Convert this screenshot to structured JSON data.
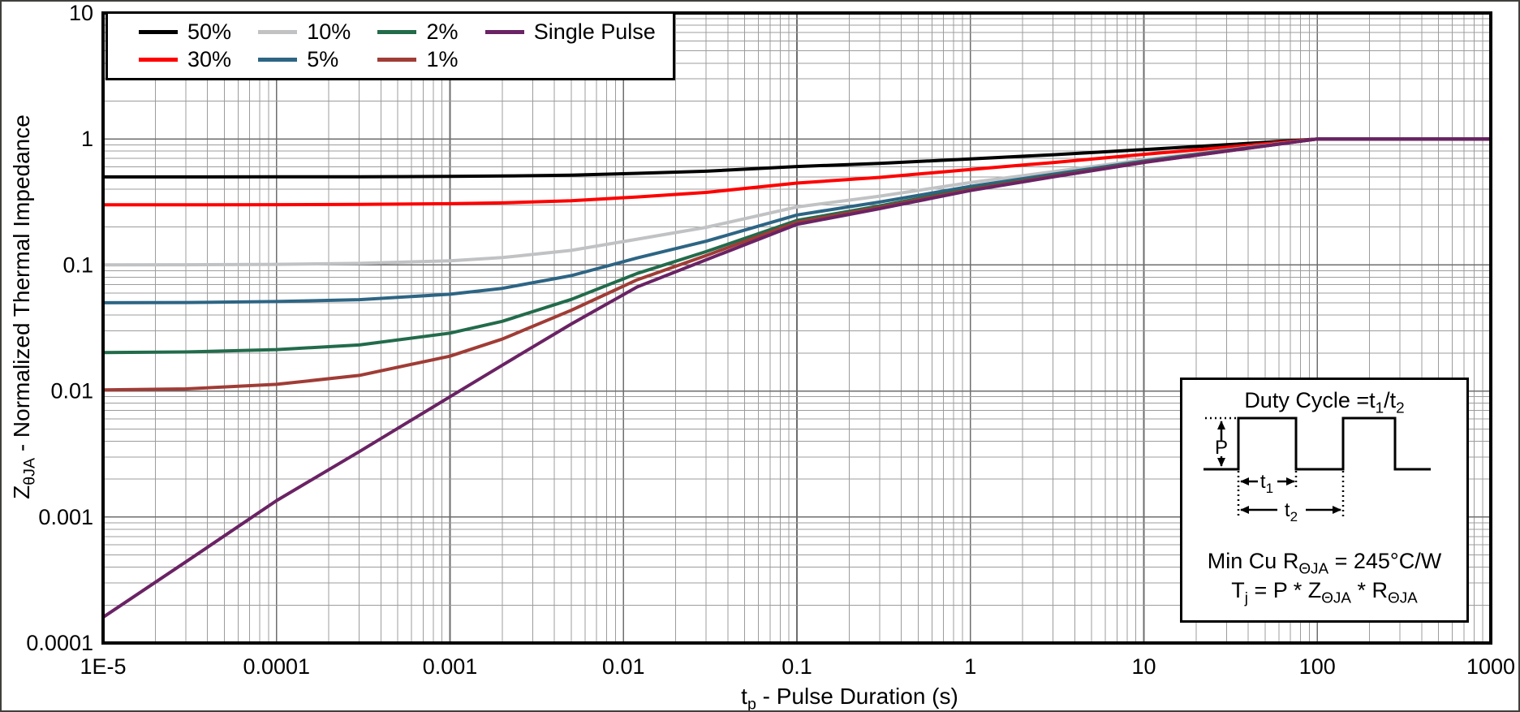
{
  "figure": {
    "background": "#ffffff",
    "border_color": "#3f3f3d",
    "plot_border_color": "#000000",
    "grid_major_color": "#6e6e6e",
    "grid_minor_color": "#9c9c9c"
  },
  "axes": {
    "x": {
      "label_prefix": "t",
      "label_sub": "p",
      "label_rest": " - Pulse Duration (s)",
      "scale": "log",
      "min": 1e-05,
      "max": 1000,
      "ticks": [
        {
          "v": 1e-05,
          "label": "1E-5"
        },
        {
          "v": 0.0001,
          "label": "0.0001"
        },
        {
          "v": 0.001,
          "label": "0.001"
        },
        {
          "v": 0.01,
          "label": "0.01"
        },
        {
          "v": 0.1,
          "label": "0.1"
        },
        {
          "v": 1,
          "label": "1"
        },
        {
          "v": 10,
          "label": "10"
        },
        {
          "v": 100,
          "label": "100"
        },
        {
          "v": 1000,
          "label": "1000"
        }
      ]
    },
    "y": {
      "label_prefix": "Z",
      "label_sub": "θJA",
      "label_rest": " - Normalized Thermal Impedance",
      "scale": "log",
      "min": 0.0001,
      "max": 10,
      "ticks": [
        {
          "v": 10,
          "label": "10"
        },
        {
          "v": 1,
          "label": "1"
        },
        {
          "v": 0.1,
          "label": "0.1"
        },
        {
          "v": 0.01,
          "label": "0.01"
        },
        {
          "v": 0.001,
          "label": "0.001"
        },
        {
          "v": 0.0001,
          "label": "0.0001"
        }
      ]
    }
  },
  "chart_data": {
    "type": "line",
    "title": "",
    "xlabel": "tp - Pulse Duration (s)",
    "ylabel": "ZθJA - Normalized Thermal Impedance",
    "xlim": [
      1e-05,
      1000
    ],
    "ylim": [
      0.0001,
      10
    ],
    "x_scale": "log",
    "y_scale": "log",
    "grid": true,
    "legend_position": "top-left",
    "x_values": [
      1e-05,
      3e-05,
      0.0001,
      0.0003,
      0.001,
      0.002,
      0.005,
      0.012,
      0.03,
      0.1,
      0.3,
      1,
      3,
      10,
      30,
      100,
      300,
      1000
    ],
    "series": [
      {
        "name": "50%",
        "duty_cycle": 0.5,
        "color": "#000000",
        "values": [
          0.5001,
          0.5002,
          0.5007,
          0.5017,
          0.5045,
          0.508,
          0.517,
          0.5335,
          0.555,
          0.605,
          0.64,
          0.695,
          0.75,
          0.825,
          0.9,
          1,
          1,
          1
        ]
      },
      {
        "name": "30%",
        "duty_cycle": 0.3,
        "color": "#ff0000",
        "values": [
          0.3001,
          0.3003,
          0.3009,
          0.3023,
          0.3063,
          0.3112,
          0.3238,
          0.3469,
          0.377,
          0.447,
          0.496,
          0.573,
          0.65,
          0.755,
          0.86,
          1,
          1,
          1
        ]
      },
      {
        "name": "10%",
        "duty_cycle": 0.1,
        "color": "#c0c2c4",
        "values": [
          0.1001,
          0.1004,
          0.1012,
          0.103,
          0.1081,
          0.1144,
          0.1306,
          0.1603,
          0.199,
          0.289,
          0.352,
          0.451,
          0.55,
          0.685,
          0.82,
          1,
          1,
          1
        ]
      },
      {
        "name": "5%",
        "duty_cycle": 0.05,
        "color": "#2d6584",
        "values": [
          0.0502,
          0.0504,
          0.0513,
          0.0531,
          0.0586,
          0.0652,
          0.0823,
          0.1137,
          0.1545,
          0.2495,
          0.316,
          0.4205,
          0.525,
          0.6675,
          0.81,
          1,
          1,
          1
        ]
      },
      {
        "name": "2%",
        "duty_cycle": 0.02,
        "color": "#226b4b",
        "values": [
          0.0202,
          0.0204,
          0.0213,
          0.0232,
          0.0288,
          0.0357,
          0.0533,
          0.0857,
          0.1278,
          0.2258,
          0.2944,
          0.4022,
          0.51,
          0.657,
          0.804,
          1,
          1,
          1
        ]
      },
      {
        "name": "1%",
        "duty_cycle": 0.01,
        "color": "#a03c36",
        "values": [
          0.0102,
          0.0104,
          0.0113,
          0.0133,
          0.0189,
          0.0258,
          0.0437,
          0.0763,
          0.1189,
          0.2179,
          0.2872,
          0.3961,
          0.505,
          0.6535,
          0.802,
          1,
          1,
          1
        ]
      },
      {
        "name": "Single Pulse",
        "duty_cycle": null,
        "color": "#6a2364",
        "values": [
          0.00016,
          0.00044,
          0.00135,
          0.0033,
          0.009,
          0.016,
          0.034,
          0.067,
          0.11,
          0.21,
          0.28,
          0.39,
          0.5,
          0.65,
          0.8,
          1,
          1,
          1
        ]
      }
    ]
  },
  "inset": {
    "title_prefix": "Duty Cycle =t",
    "title_sub1": "1",
    "title_mid": "/t",
    "title_sub2": "2",
    "p_label": "P",
    "t1_prefix": "t",
    "t1_sub": "1",
    "t2_prefix": "t",
    "t2_sub": "2",
    "f1_prefix": "Min Cu R",
    "f1_sub": "ΘJA",
    "f1_rest": " = 245°C/W",
    "f2_p1": "T",
    "f2_sub1": "j",
    "f2_p2": " = P * Z",
    "f2_sub2": "ΘJA",
    "f2_p3": " * R",
    "f2_sub3": "ΘJA"
  }
}
